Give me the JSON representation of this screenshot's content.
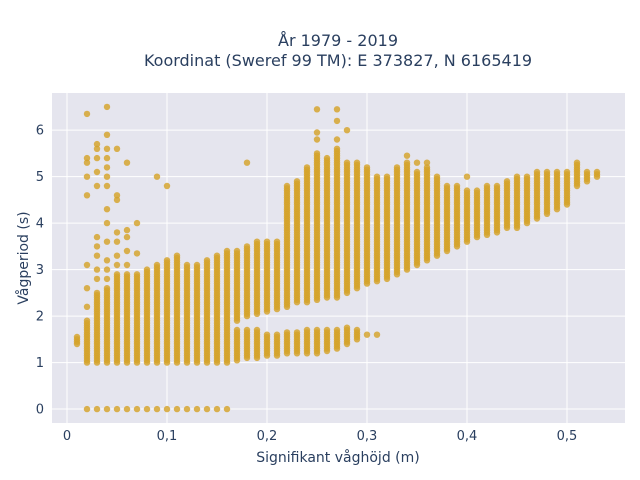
{
  "chart_data": {
    "type": "scatter",
    "title_line1": "År 1979 - 2019",
    "title_line2": "Koordinat (Sweref 99 TM): E 373827, N 6165419",
    "xlabel": "Signifikant våghöjd (m)",
    "ylabel": "Vågperiod (s)",
    "xlim": [
      -0.015,
      0.558
    ],
    "ylim": [
      -0.3,
      6.8
    ],
    "x_ticks": [
      {
        "value": 0,
        "label": "0"
      },
      {
        "value": 0.1,
        "label": "0,1"
      },
      {
        "value": 0.2,
        "label": "0,2"
      },
      {
        "value": 0.3,
        "label": "0,3"
      },
      {
        "value": 0.4,
        "label": "0,4"
      },
      {
        "value": 0.5,
        "label": "0,5"
      }
    ],
    "y_ticks": [
      {
        "value": 0,
        "label": "0"
      },
      {
        "value": 1,
        "label": "1"
      },
      {
        "value": 2,
        "label": "2"
      },
      {
        "value": 3,
        "label": "3"
      },
      {
        "value": 4,
        "label": "4"
      },
      {
        "value": 5,
        "label": "5"
      },
      {
        "value": 6,
        "label": "6"
      }
    ],
    "grid": true,
    "legend": "none",
    "colors": {
      "marker": "#d4a22a",
      "plot_bg": "#e5e5ee",
      "grid": "#ffffff",
      "text": "#2a3f5f"
    },
    "columns": [
      {
        "x": 0.01,
        "segments": [
          [
            1.4,
            1.55
          ]
        ]
      },
      {
        "x": 0.02,
        "segments": [
          [
            1.0,
            1.9
          ]
        ],
        "points": [
          0,
          2.2,
          2.6,
          3.1,
          4.6,
          5.0,
          5.3,
          5.4,
          6.35
        ]
      },
      {
        "x": 0.03,
        "segments": [
          [
            1.0,
            2.5
          ]
        ],
        "points": [
          0,
          2.8,
          3.0,
          3.3,
          3.5,
          3.7,
          4.8,
          5.1,
          5.4,
          5.6,
          5.7
        ]
      },
      {
        "x": 0.04,
        "segments": [
          [
            1.0,
            2.6
          ]
        ],
        "points": [
          0,
          2.8,
          3.0,
          3.2,
          3.6,
          4.0,
          4.3,
          4.8,
          5.0,
          5.2,
          5.4,
          5.6,
          5.9,
          6.5
        ]
      },
      {
        "x": 0.05,
        "segments": [
          [
            1.0,
            2.9
          ]
        ],
        "points": [
          0,
          3.1,
          3.3,
          3.6,
          3.8,
          4.5,
          4.6,
          5.6
        ]
      },
      {
        "x": 0.06,
        "segments": [
          [
            1.0,
            2.9
          ]
        ],
        "points": [
          0,
          3.1,
          3.4,
          3.7,
          3.85,
          5.3
        ]
      },
      {
        "x": 0.07,
        "segments": [
          [
            1.0,
            2.9
          ]
        ],
        "points": [
          0,
          3.35,
          4.0
        ]
      },
      {
        "x": 0.08,
        "segments": [
          [
            1.0,
            3.0
          ]
        ],
        "points": [
          0
        ]
      },
      {
        "x": 0.09,
        "segments": [
          [
            1.0,
            3.1
          ]
        ],
        "points": [
          0,
          5.0
        ]
      },
      {
        "x": 0.1,
        "segments": [
          [
            1.0,
            3.2
          ]
        ],
        "points": [
          0,
          4.8
        ]
      },
      {
        "x": 0.11,
        "segments": [
          [
            1.0,
            3.3
          ]
        ],
        "points": [
          0
        ]
      },
      {
        "x": 0.12,
        "segments": [
          [
            1.0,
            3.1
          ]
        ],
        "points": [
          0
        ]
      },
      {
        "x": 0.13,
        "segments": [
          [
            1.0,
            3.1
          ]
        ],
        "points": [
          0
        ]
      },
      {
        "x": 0.14,
        "segments": [
          [
            1.0,
            3.2
          ]
        ],
        "points": [
          0
        ]
      },
      {
        "x": 0.15,
        "segments": [
          [
            1.0,
            3.3
          ]
        ],
        "points": [
          0
        ]
      },
      {
        "x": 0.16,
        "segments": [
          [
            1.0,
            3.4
          ]
        ],
        "points": [
          0
        ]
      },
      {
        "x": 0.17,
        "segments": [
          [
            1.05,
            1.7
          ],
          [
            1.9,
            3.4
          ]
        ]
      },
      {
        "x": 0.18,
        "segments": [
          [
            1.1,
            1.7
          ],
          [
            2.0,
            3.5
          ]
        ],
        "points": [
          5.3
        ]
      },
      {
        "x": 0.19,
        "segments": [
          [
            1.1,
            1.7
          ],
          [
            2.05,
            3.6
          ]
        ]
      },
      {
        "x": 0.2,
        "segments": [
          [
            1.15,
            1.6
          ],
          [
            2.1,
            3.6
          ]
        ]
      },
      {
        "x": 0.21,
        "segments": [
          [
            1.15,
            1.6
          ],
          [
            2.15,
            3.6
          ]
        ]
      },
      {
        "x": 0.22,
        "segments": [
          [
            1.2,
            1.65
          ],
          [
            2.2,
            4.8
          ]
        ]
      },
      {
        "x": 0.23,
        "segments": [
          [
            1.2,
            1.65
          ],
          [
            2.3,
            4.9
          ]
        ]
      },
      {
        "x": 0.24,
        "segments": [
          [
            1.2,
            1.7
          ],
          [
            2.3,
            5.2
          ]
        ]
      },
      {
        "x": 0.25,
        "segments": [
          [
            1.2,
            1.7
          ],
          [
            2.35,
            5.5
          ]
        ],
        "points": [
          5.8,
          5.95,
          6.45
        ]
      },
      {
        "x": 0.26,
        "segments": [
          [
            1.25,
            1.7
          ],
          [
            2.4,
            5.4
          ]
        ]
      },
      {
        "x": 0.27,
        "segments": [
          [
            1.3,
            1.7
          ],
          [
            2.4,
            5.6
          ]
        ],
        "points": [
          5.8,
          6.2,
          6.45
        ]
      },
      {
        "x": 0.28,
        "segments": [
          [
            1.4,
            1.75
          ],
          [
            2.5,
            5.3
          ]
        ],
        "points": [
          6.0
        ]
      },
      {
        "x": 0.29,
        "segments": [
          [
            1.5,
            1.7
          ],
          [
            2.6,
            5.3
          ]
        ]
      },
      {
        "x": 0.3,
        "segments": [
          [
            2.7,
            5.2
          ]
        ],
        "points": [
          1.6
        ]
      },
      {
        "x": 0.31,
        "segments": [
          [
            2.75,
            5.0
          ]
        ],
        "points": [
          1.6
        ]
      },
      {
        "x": 0.32,
        "segments": [
          [
            2.8,
            5.0
          ]
        ]
      },
      {
        "x": 0.33,
        "segments": [
          [
            2.9,
            5.2
          ]
        ]
      },
      {
        "x": 0.34,
        "segments": [
          [
            3.0,
            5.3
          ]
        ],
        "points": [
          5.45
        ]
      },
      {
        "x": 0.35,
        "segments": [
          [
            3.1,
            5.1
          ]
        ],
        "points": [
          5.3
        ]
      },
      {
        "x": 0.36,
        "segments": [
          [
            3.2,
            5.2
          ]
        ],
        "points": [
          5.3
        ]
      },
      {
        "x": 0.37,
        "segments": [
          [
            3.3,
            5.0
          ]
        ]
      },
      {
        "x": 0.38,
        "segments": [
          [
            3.4,
            4.8
          ]
        ]
      },
      {
        "x": 0.39,
        "segments": [
          [
            3.5,
            4.8
          ]
        ]
      },
      {
        "x": 0.4,
        "segments": [
          [
            3.6,
            4.7
          ]
        ],
        "points": [
          5.0
        ]
      },
      {
        "x": 0.41,
        "segments": [
          [
            3.7,
            4.7
          ]
        ]
      },
      {
        "x": 0.42,
        "segments": [
          [
            3.75,
            4.8
          ]
        ]
      },
      {
        "x": 0.43,
        "segments": [
          [
            3.8,
            4.8
          ]
        ]
      },
      {
        "x": 0.44,
        "segments": [
          [
            3.9,
            4.9
          ]
        ]
      },
      {
        "x": 0.45,
        "segments": [
          [
            3.9,
            5.0
          ]
        ]
      },
      {
        "x": 0.46,
        "segments": [
          [
            4.0,
            5.0
          ]
        ]
      },
      {
        "x": 0.47,
        "segments": [
          [
            4.1,
            5.1
          ]
        ]
      },
      {
        "x": 0.48,
        "segments": [
          [
            4.2,
            5.1
          ]
        ]
      },
      {
        "x": 0.49,
        "segments": [
          [
            4.3,
            5.1
          ]
        ]
      },
      {
        "x": 0.5,
        "segments": [
          [
            4.4,
            5.1
          ]
        ]
      },
      {
        "x": 0.51,
        "segments": [
          [
            4.8,
            5.3
          ]
        ]
      },
      {
        "x": 0.52,
        "segments": [
          [
            4.9,
            5.1
          ]
        ]
      },
      {
        "x": 0.53,
        "segments": [
          [
            5.0,
            5.1
          ]
        ]
      }
    ]
  }
}
